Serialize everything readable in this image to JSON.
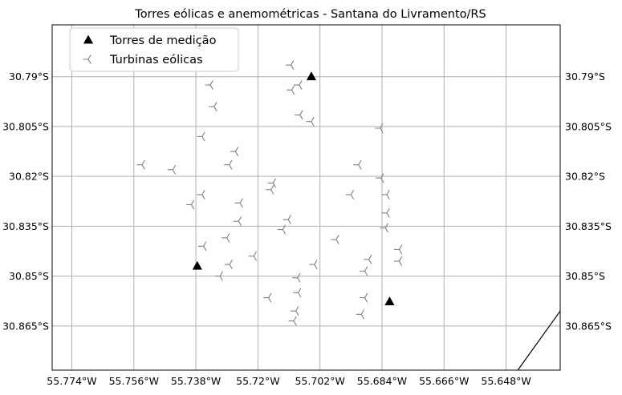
{
  "chart_data": {
    "type": "scatter",
    "title": "Torres eólicas e anemométricas - Santana do Livramento/RS",
    "x_ticks": [
      "55.774°W",
      "55.756°W",
      "55.738°W",
      "55.72°W",
      "55.702°W",
      "55.684°W",
      "55.666°W",
      "55.648°W"
    ],
    "x_tick_values": [
      -55.774,
      -55.756,
      -55.738,
      -55.72,
      -55.702,
      -55.684,
      -55.666,
      -55.648
    ],
    "y_ticks_left": [
      "30.79°S",
      "30.805°S",
      "30.82°S",
      "30.835°S",
      "30.85°S",
      "30.865°S"
    ],
    "y_ticks_right": [
      "30.79°S",
      "30.805°S",
      "30.82°S",
      "30.835°S",
      "30.85°S",
      "30.865°S"
    ],
    "y_tick_values": [
      -30.79,
      -30.805,
      -30.82,
      -30.835,
      -30.85,
      -30.865
    ],
    "xlim": [
      -55.7797,
      -55.6323
    ],
    "ylim": [
      -30.8783,
      -30.7744
    ],
    "grid": true,
    "legend_position": "top-left",
    "series": [
      {
        "name": "Torres de medição",
        "marker": "triangle",
        "color": "#000000",
        "points": [
          [
            -55.7045,
            -30.79
          ],
          [
            -55.7376,
            -30.847
          ],
          [
            -55.6818,
            -30.8577
          ]
        ]
      },
      {
        "name": "Turbinas eólicas",
        "marker": "tri_left",
        "color": "#808080",
        "points": [
          [
            -55.7104,
            -30.7865
          ],
          [
            -55.7338,
            -30.7925
          ],
          [
            -55.708,
            -30.7925
          ],
          [
            -55.7102,
            -30.794
          ],
          [
            -55.7327,
            -30.799
          ],
          [
            -55.7078,
            -30.8015
          ],
          [
            -55.7045,
            -30.8035
          ],
          [
            -55.6845,
            -30.8055
          ],
          [
            -55.7362,
            -30.808
          ],
          [
            -55.7265,
            -30.8125
          ],
          [
            -55.7536,
            -30.8165
          ],
          [
            -55.7283,
            -30.8165
          ],
          [
            -55.6908,
            -30.8165
          ],
          [
            -55.7447,
            -30.818
          ],
          [
            -55.6843,
            -30.8205
          ],
          [
            -55.7156,
            -30.822
          ],
          [
            -55.7162,
            -30.824
          ],
          [
            -55.7362,
            -30.8255
          ],
          [
            -55.693,
            -30.8255
          ],
          [
            -55.6826,
            -30.8255
          ],
          [
            -55.7393,
            -30.8285
          ],
          [
            -55.7252,
            -30.828
          ],
          [
            -55.6826,
            -30.831
          ],
          [
            -55.7112,
            -30.833
          ],
          [
            -55.7256,
            -30.8335
          ],
          [
            -55.683,
            -30.8355
          ],
          [
            -55.7128,
            -30.836
          ],
          [
            -55.729,
            -30.8385
          ],
          [
            -55.6973,
            -30.839
          ],
          [
            -55.679,
            -30.842
          ],
          [
            -55.7358,
            -30.841
          ],
          [
            -55.7212,
            -30.844
          ],
          [
            -55.6878,
            -30.845
          ],
          [
            -55.679,
            -30.8455
          ],
          [
            -55.7282,
            -30.8465
          ],
          [
            -55.7036,
            -30.8465
          ],
          [
            -55.689,
            -30.8485
          ],
          [
            -55.731,
            -30.85
          ],
          [
            -55.7085,
            -30.8505
          ],
          [
            -55.7083,
            -30.855
          ],
          [
            -55.7169,
            -30.8565
          ],
          [
            -55.689,
            -30.8565
          ],
          [
            -55.709,
            -30.8605
          ],
          [
            -55.69,
            -30.8615
          ],
          [
            -55.7096,
            -30.8635
          ]
        ]
      }
    ],
    "boundary_line": [
      [
        -55.6446,
        -30.8783
      ],
      [
        -55.6323,
        -30.8605
      ]
    ]
  }
}
